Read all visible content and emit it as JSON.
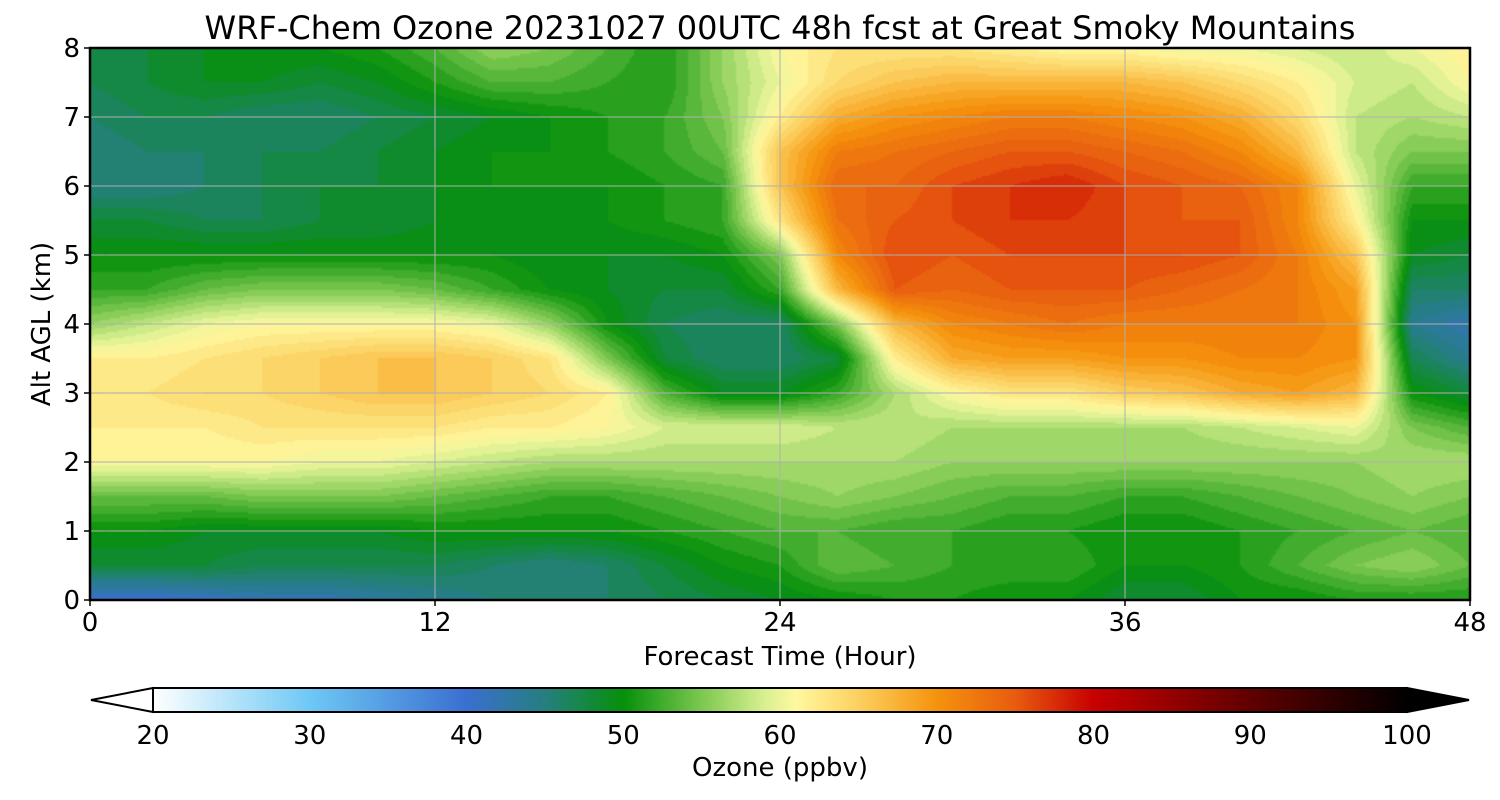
{
  "chart_data": {
    "type": "heatmap",
    "title": "WRF-Chem Ozone  20231027 00UTC 48h fcst at Great Smoky Mountains",
    "xlabel": "Forecast Time (Hour)",
    "ylabel": "Alt AGL (km)",
    "xlim": [
      0,
      48
    ],
    "ylim": [
      0,
      8
    ],
    "x_ticks": [
      "0",
      "12",
      "24",
      "36",
      "48"
    ],
    "y_ticks": [
      "0",
      "1",
      "2",
      "3",
      "4",
      "5",
      "6",
      "7",
      "8"
    ],
    "grid": true,
    "colorbar": {
      "label": "Ozone  (ppbv)",
      "min": 20,
      "max": 100,
      "extend": "both",
      "ticks": [
        "20",
        "30",
        "40",
        "50",
        "60",
        "70",
        "80",
        "90",
        "100"
      ],
      "colors": [
        [
          20,
          "#ffffff"
        ],
        [
          30,
          "#6ec8f5"
        ],
        [
          40,
          "#3a6fd0"
        ],
        [
          45,
          "#257f7f"
        ],
        [
          50,
          "#06900a"
        ],
        [
          55,
          "#7cc850"
        ],
        [
          59,
          "#d8f090"
        ],
        [
          61,
          "#fff8a0"
        ],
        [
          65,
          "#fcd060"
        ],
        [
          70,
          "#f5930c"
        ],
        [
          75,
          "#e85c10"
        ],
        [
          80,
          "#c80000"
        ],
        [
          90,
          "#600000"
        ],
        [
          100,
          "#000000"
        ]
      ]
    },
    "hours": [
      0,
      2,
      4,
      6,
      8,
      10,
      12,
      14,
      16,
      18,
      20,
      22,
      24,
      26,
      28,
      30,
      32,
      34,
      36,
      38,
      40,
      42,
      44,
      46,
      48
    ],
    "altitudes_km": [
      0,
      0.5,
      1,
      1.5,
      2,
      2.5,
      3,
      3.5,
      4,
      4.5,
      5,
      5.5,
      6,
      6.5,
      7,
      7.5,
      8
    ],
    "ozone_ppbv": [
      [
        40,
        40,
        41,
        42,
        42,
        43,
        44,
        45,
        45,
        46,
        47,
        48,
        49,
        50,
        51,
        51,
        50,
        50,
        48,
        48,
        50,
        50,
        51,
        51,
        51
      ],
      [
        48,
        48,
        48,
        47,
        47,
        47,
        47,
        46,
        45,
        46,
        48,
        50,
        51,
        54,
        53,
        52,
        52,
        52,
        50,
        50,
        51,
        53,
        55,
        56,
        54
      ],
      [
        50,
        50,
        49,
        49,
        49,
        49,
        50,
        50,
        50,
        50,
        51,
        52,
        53,
        53,
        52,
        52,
        51,
        51,
        50,
        50,
        51,
        52,
        53,
        54,
        53
      ],
      [
        54,
        54,
        54,
        55,
        55,
        55,
        54,
        53,
        52,
        52,
        53,
        54,
        55,
        56,
        55,
        54,
        53,
        53,
        52,
        52,
        53,
        54,
        55,
        56,
        55
      ],
      [
        61,
        61,
        61,
        61,
        60,
        60,
        59,
        58,
        57,
        57,
        57,
        57,
        57,
        57,
        57,
        56,
        56,
        56,
        56,
        56,
        56,
        56,
        56,
        57,
        57
      ],
      [
        62,
        62,
        62,
        63,
        63,
        63,
        63,
        62,
        62,
        61,
        59,
        59,
        59,
        58,
        58,
        57,
        57,
        57,
        57,
        57,
        58,
        59,
        60,
        55,
        53
      ],
      [
        63,
        63,
        64,
        64,
        65,
        66,
        66,
        65,
        64,
        62,
        53,
        49,
        49,
        52,
        57,
        61,
        63,
        63,
        65,
        66,
        68,
        69,
        67,
        50,
        48
      ],
      [
        62,
        62,
        63,
        64,
        65,
        66,
        66,
        65,
        63,
        55,
        48,
        46,
        46,
        48,
        62,
        68,
        69,
        69,
        70,
        70,
        71,
        71,
        70,
        47,
        44
      ],
      [
        56,
        58,
        60,
        61,
        61,
        61,
        61,
        60,
        56,
        50,
        47,
        46,
        46,
        55,
        67,
        71,
        72,
        73,
        72,
        72,
        72,
        72,
        70,
        44,
        42
      ],
      [
        52,
        52,
        54,
        55,
        55,
        55,
        54,
        52,
        50,
        49,
        48,
        48,
        52,
        67,
        75,
        74,
        75,
        75,
        75,
        74,
        73,
        72,
        69,
        46,
        46
      ],
      [
        50,
        50,
        50,
        50,
        50,
        50,
        50,
        50,
        49,
        49,
        49,
        50,
        55,
        71,
        76,
        75,
        76,
        76,
        76,
        76,
        75,
        72,
        66,
        49,
        48
      ],
      [
        48,
        48,
        47,
        47,
        48,
        48,
        49,
        49,
        49,
        50,
        51,
        52,
        63,
        73,
        75,
        76,
        77,
        77,
        76,
        75,
        75,
        71,
        62,
        50,
        50
      ],
      [
        45,
        45,
        46,
        47,
        48,
        48,
        49,
        50,
        50,
        50,
        51,
        52,
        66,
        74,
        74,
        76,
        77,
        78,
        76,
        75,
        74,
        71,
        60,
        52,
        52
      ],
      [
        45,
        46,
        46,
        47,
        47,
        48,
        49,
        50,
        50,
        51,
        52,
        54,
        66,
        72,
        73,
        74,
        75,
        75,
        74,
        73,
        71,
        67,
        58,
        55,
        55
      ],
      [
        46,
        47,
        47,
        46,
        46,
        47,
        48,
        49,
        50,
        51,
        52,
        55,
        62,
        68,
        70,
        71,
        72,
        72,
        71,
        70,
        68,
        64,
        58,
        57,
        58
      ],
      [
        47,
        48,
        49,
        49,
        48,
        49,
        51,
        53,
        53,
        52,
        51,
        56,
        60,
        64,
        66,
        67,
        67,
        67,
        67,
        66,
        64,
        62,
        59,
        58,
        61
      ],
      [
        47,
        48,
        49,
        50,
        50,
        51,
        53,
        56,
        55,
        53,
        51,
        56,
        61,
        63,
        63,
        63,
        62,
        61,
        61,
        60,
        60,
        59,
        58,
        60,
        62
      ]
    ]
  }
}
